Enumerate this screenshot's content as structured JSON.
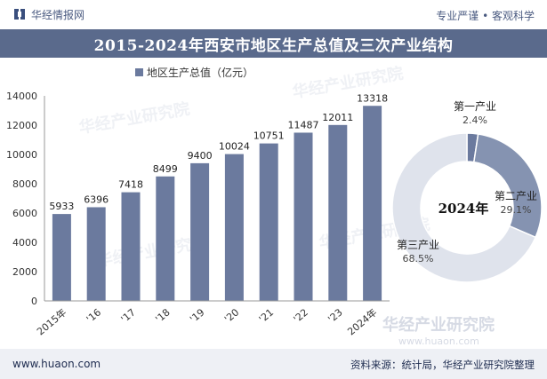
{
  "header": {
    "brand": "华经情报网",
    "slogan": "专业严谨 • 客观科学",
    "title": "2015-2024年西安市地区生产总值及三次产业结构"
  },
  "watermark": {
    "cn": "华经产业研究院",
    "url": "www.huaon.com"
  },
  "footer": {
    "url": "www.huaon.com",
    "source": "资料来源：统计局，华经产业研究院整理"
  },
  "colors": {
    "bar": "#6b7a9e",
    "title_bg": "#5a6a8c",
    "donut_primary": "#6b7a9e",
    "donut_secondary": "#8593b1",
    "donut_tertiary": "#dfe3ec"
  },
  "chart_data": [
    {
      "type": "bar",
      "legend": "地区生产总值（亿元）",
      "categories": [
        "2015年",
        "'16",
        "'17",
        "'18",
        "'19",
        "'20",
        "'21",
        "'22",
        "'23",
        "2024年"
      ],
      "values": [
        5933,
        6396,
        7418,
        8499,
        9400,
        10024,
        10751,
        11487,
        12011,
        13318
      ],
      "yticks": [
        0,
        2000,
        4000,
        6000,
        8000,
        10000,
        12000,
        14000
      ],
      "ylim": [
        0,
        14000
      ]
    },
    {
      "type": "pie",
      "center_label": "2024年",
      "slices": [
        {
          "name": "第一产业",
          "value": 2.4,
          "label": "2.4%"
        },
        {
          "name": "第二产业",
          "value": 29.1,
          "label": "29.1%"
        },
        {
          "name": "第三产业",
          "value": 68.5,
          "label": "68.5%"
        }
      ]
    }
  ]
}
